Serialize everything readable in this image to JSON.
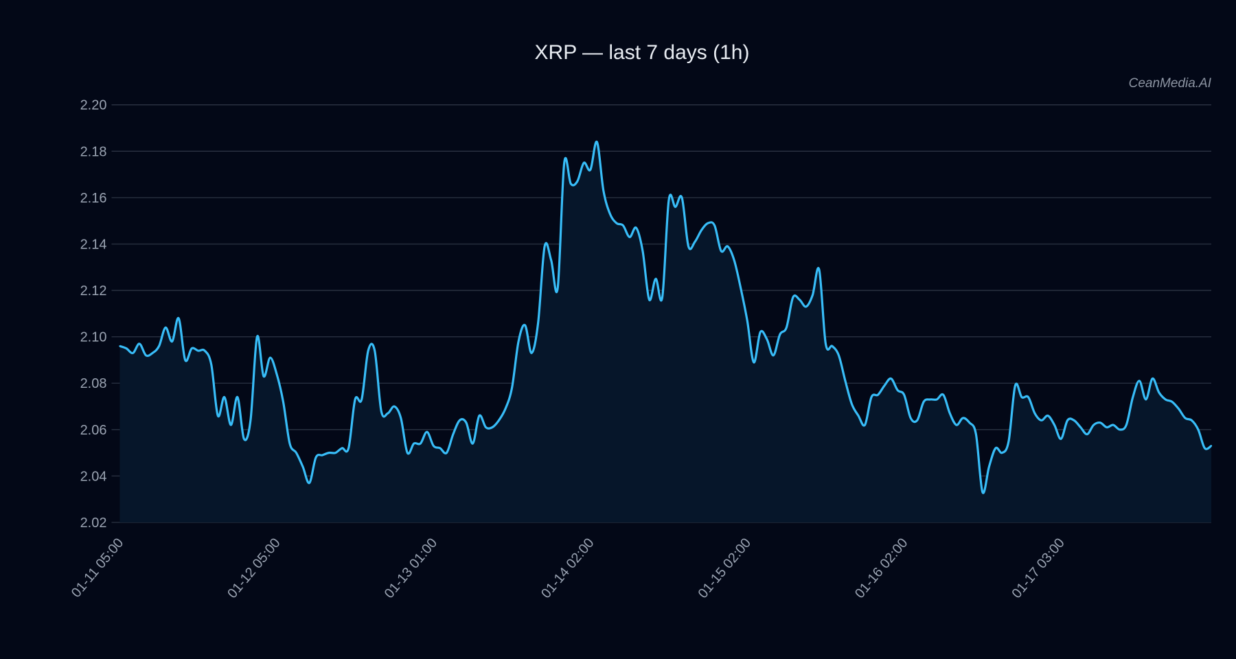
{
  "chart_data": {
    "type": "area",
    "title": "XRP — last 7 days (1h)",
    "watermark": "CeanMedia.AI",
    "xlabel": "",
    "ylabel": "",
    "ylim": [
      2.02,
      2.2
    ],
    "yticks": [
      "2.02",
      "2.04",
      "2.06",
      "2.08",
      "2.10",
      "2.12",
      "2.14",
      "2.16",
      "2.18",
      "2.20"
    ],
    "xticks": [
      {
        "index": 0,
        "label": "01-11 05:00"
      },
      {
        "index": 24,
        "label": "01-12 05:00"
      },
      {
        "index": 48,
        "label": "01-13 01:00"
      },
      {
        "index": 72,
        "label": "01-14 02:00"
      },
      {
        "index": 96,
        "label": "01-15 02:00"
      },
      {
        "index": 120,
        "label": "01-16 02:00"
      },
      {
        "index": 144,
        "label": "01-17 03:00"
      }
    ],
    "grid": true,
    "colors": {
      "line": "#38bdf8",
      "fill": "#06162a",
      "background": "#030817",
      "grid": "#2c3444"
    },
    "values": [
      2.096,
      2.095,
      2.093,
      2.097,
      2.092,
      2.093,
      2.096,
      2.104,
      2.098,
      2.108,
      2.09,
      2.095,
      2.094,
      2.094,
      2.088,
      2.066,
      2.074,
      2.062,
      2.074,
      2.056,
      2.064,
      2.1,
      2.083,
      2.091,
      2.084,
      2.072,
      2.054,
      2.05,
      2.044,
      2.037,
      2.048,
      2.049,
      2.05,
      2.05,
      2.052,
      2.052,
      2.073,
      2.073,
      2.094,
      2.094,
      2.068,
      2.067,
      2.07,
      2.065,
      2.05,
      2.054,
      2.054,
      2.059,
      2.053,
      2.052,
      2.05,
      2.058,
      2.064,
      2.063,
      2.054,
      2.066,
      2.061,
      2.061,
      2.064,
      2.069,
      2.078,
      2.098,
      2.105,
      2.093,
      2.106,
      2.139,
      2.133,
      2.121,
      2.175,
      2.166,
      2.167,
      2.175,
      2.172,
      2.184,
      2.163,
      2.153,
      2.149,
      2.148,
      2.143,
      2.147,
      2.137,
      2.116,
      2.125,
      2.117,
      2.159,
      2.156,
      2.16,
      2.139,
      2.141,
      2.146,
      2.149,
      2.148,
      2.137,
      2.139,
      2.133,
      2.121,
      2.107,
      2.089,
      2.102,
      2.099,
      2.092,
      2.101,
      2.104,
      2.117,
      2.116,
      2.113,
      2.118,
      2.129,
      2.097,
      2.096,
      2.092,
      2.081,
      2.071,
      2.066,
      2.062,
      2.074,
      2.075,
      2.079,
      2.082,
      2.077,
      2.075,
      2.065,
      2.064,
      2.072,
      2.073,
      2.073,
      2.075,
      2.067,
      2.062,
      2.065,
      2.063,
      2.058,
      2.033,
      2.044,
      2.052,
      2.05,
      2.055,
      2.079,
      2.074,
      2.074,
      2.067,
      2.064,
      2.066,
      2.062,
      2.056,
      2.064,
      2.064,
      2.061,
      2.058,
      2.062,
      2.063,
      2.061,
      2.062,
      2.06,
      2.062,
      2.074,
      2.081,
      2.073,
      2.082,
      2.076,
      2.073,
      2.072,
      2.069,
      2.065,
      2.064,
      2.06,
      2.052,
      2.053
    ]
  }
}
